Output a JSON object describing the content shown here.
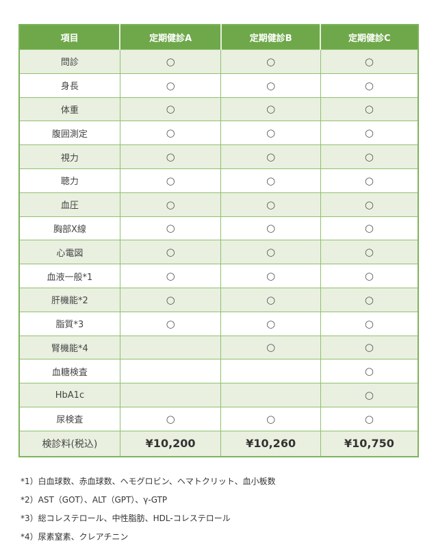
{
  "header": [
    "項目",
    "定期健診A",
    "定期健診B",
    "定期健診C"
  ],
  "mark": "○",
  "rows": [
    {
      "item": "問診",
      "a": "○",
      "b": "○",
      "c": "○"
    },
    {
      "item": "身長",
      "a": "○",
      "b": "○",
      "c": "○"
    },
    {
      "item": "体重",
      "a": "○",
      "b": "○",
      "c": "○"
    },
    {
      "item": "腹囲測定",
      "a": "○",
      "b": "○",
      "c": "○"
    },
    {
      "item": "視力",
      "a": "○",
      "b": "○",
      "c": "○"
    },
    {
      "item": "聴力",
      "a": "○",
      "b": "○",
      "c": "○"
    },
    {
      "item": "血圧",
      "a": "○",
      "b": "○",
      "c": "○"
    },
    {
      "item": "胸部X線",
      "a": "○",
      "b": "○",
      "c": "○"
    },
    {
      "item": "心電図",
      "a": "○",
      "b": "○",
      "c": "○"
    },
    {
      "item": "血液一般*1",
      "a": "○",
      "b": "○",
      "c": "○"
    },
    {
      "item": "肝機能*2",
      "a": "○",
      "b": "○",
      "c": "○"
    },
    {
      "item": "脂質*3",
      "a": "○",
      "b": "○",
      "c": "○"
    },
    {
      "item": "腎機能*4",
      "a": "",
      "b": "○",
      "c": "○"
    },
    {
      "item": "血糖検査",
      "a": "",
      "b": "",
      "c": "○"
    },
    {
      "item": "HbA1c",
      "a": "",
      "b": "",
      "c": "○"
    },
    {
      "item": "尿検査",
      "a": "○",
      "b": "○",
      "c": "○"
    }
  ],
  "fee": {
    "label": "検診料(税込)",
    "a": "¥10,200",
    "b": "¥10,260",
    "c": "¥10,750"
  },
  "notes": [
    "*1）白血球数、赤血球数、ヘモグロビン、ヘマトクリット、血小板数",
    "*2）AST（GOT）、ALT（GPT）、γ-GTP",
    "*3）総コレステロール、中性脂肪、HDL-コレステロール",
    "*4）尿素窒素、クレアチニン"
  ],
  "colors": {
    "header": "#6fa84a",
    "row_alt": "#e9f0e0",
    "border": "#8fbf6c"
  }
}
